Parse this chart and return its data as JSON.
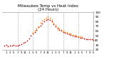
{
  "title_line1": "Milwaukee Temp vs Heat Index",
  "title_line2": "(24 Hours)",
  "title_fontsize": 4.0,
  "background_color": "#ffffff",
  "plot_bg_color": "#ffffff",
  "grid_color": "#888888",
  "ylim": [
    20,
    100
  ],
  "xlim": [
    0,
    48
  ],
  "yticks": [
    20,
    30,
    40,
    50,
    60,
    70,
    80,
    90,
    100
  ],
  "ytick_labels": [
    "20",
    "30",
    "40",
    "50",
    "60",
    "70",
    "80",
    "90",
    "100"
  ],
  "vgrid_positions": [
    8,
    16,
    24,
    32,
    40,
    48
  ],
  "xtick_positions": [
    2,
    4,
    6,
    8,
    10,
    12,
    14,
    16,
    18,
    20,
    22,
    24,
    26,
    28,
    30,
    32,
    34,
    36,
    38,
    40,
    42,
    44,
    46,
    48
  ],
  "xtick_labels": [
    "1",
    "3",
    "5",
    "7",
    "9",
    "11",
    "1",
    "3",
    "5",
    "7",
    "9",
    "11",
    "1",
    "3",
    "5",
    "7",
    "9",
    "11",
    "1",
    "3",
    "5",
    "7",
    "9",
    "5"
  ],
  "temp_x": [
    1,
    2,
    3,
    4,
    5,
    6,
    7,
    8,
    9,
    10,
    11,
    12,
    13,
    14,
    15,
    16,
    17,
    18,
    19,
    20,
    21,
    22,
    23,
    24,
    25,
    26,
    27,
    28,
    29,
    30,
    31,
    32,
    33,
    34,
    35,
    36,
    37,
    38,
    39,
    40,
    41,
    42,
    43,
    44,
    45,
    46,
    47,
    48
  ],
  "temp_y": [
    28,
    30,
    27,
    29,
    28,
    30,
    29,
    28,
    30,
    32,
    35,
    37,
    40,
    44,
    50,
    55,
    58,
    63,
    68,
    72,
    76,
    80,
    83,
    86,
    84,
    80,
    75,
    70,
    66,
    63,
    60,
    58,
    56,
    55,
    53,
    52,
    50,
    49,
    48,
    47,
    46,
    45,
    44,
    43,
    43,
    42,
    42,
    41
  ],
  "heat_x": [
    16,
    17,
    18,
    19,
    20,
    21,
    22,
    23,
    24,
    25,
    26,
    27,
    28,
    29,
    30,
    31,
    32,
    33,
    34,
    35,
    36,
    37,
    38,
    39,
    40,
    41,
    42
  ],
  "heat_y": [
    56,
    60,
    65,
    70,
    77,
    82,
    85,
    88,
    91,
    89,
    84,
    78,
    73,
    68,
    65,
    62,
    60,
    58,
    57,
    55,
    54,
    52,
    51,
    50,
    49,
    48,
    47
  ],
  "temp_color": "#cc0000",
  "heat_color": "#ff8800",
  "dot_size": 1.5
}
